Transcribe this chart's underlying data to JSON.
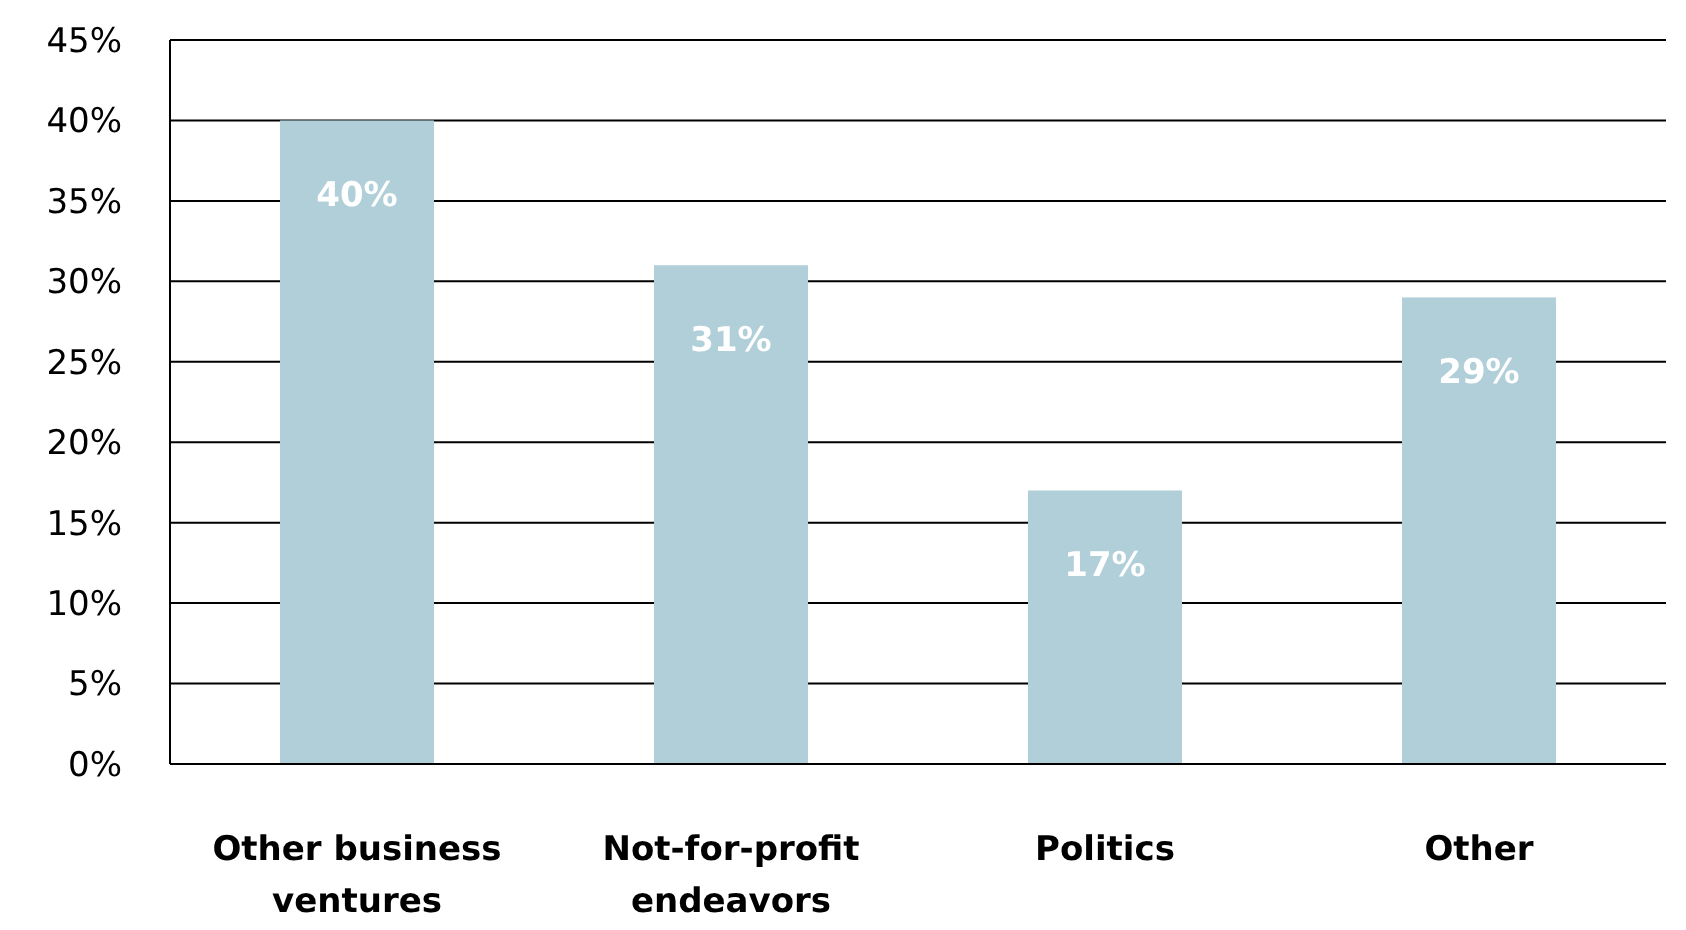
{
  "chart_data": {
    "type": "bar",
    "categories": [
      "Other business ventures",
      "Not-for-profit endeavors",
      "Politics",
      "Other"
    ],
    "values": [
      40,
      31,
      17,
      29
    ],
    "color": "#b0cfd9",
    "ylim": [
      0,
      45
    ],
    "yticks": [
      {
        "value": 0,
        "label": "0%"
      },
      {
        "value": 5,
        "label": "5%"
      },
      {
        "value": 10,
        "label": "10%"
      },
      {
        "value": 15,
        "label": "15%"
      },
      {
        "value": 20,
        "label": "20%"
      },
      {
        "value": 25,
        "label": "25%"
      },
      {
        "value": 30,
        "label": "30%"
      },
      {
        "value": 35,
        "label": "35%"
      },
      {
        "value": 40,
        "label": "40%"
      },
      {
        "value": 45,
        "label": "45%"
      }
    ],
    "grid": "y",
    "value_labels": [
      "40%",
      "31%",
      "17%",
      "29%"
    ]
  }
}
